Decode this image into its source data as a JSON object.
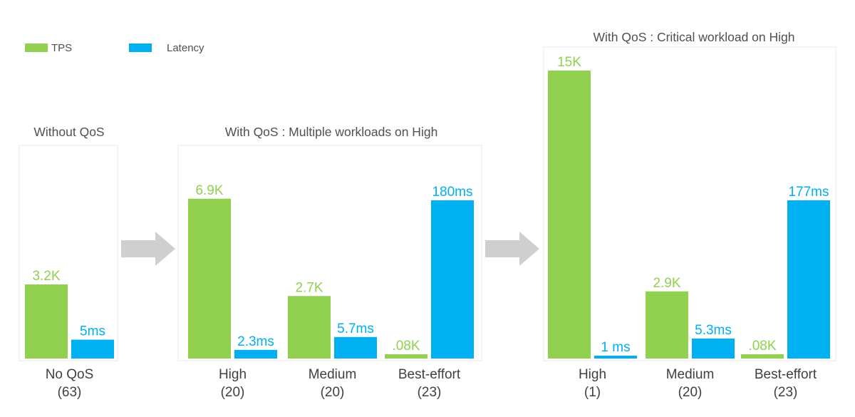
{
  "colors": {
    "tps": "#92d050",
    "latency": "#00b0f0",
    "frame": "#e8e8e8",
    "arrow": "#cfcfcf"
  },
  "legend": [
    {
      "key": "tps",
      "label": "TPS"
    },
    {
      "key": "latency",
      "label": "Latency"
    }
  ],
  "chart_data": [
    {
      "type": "bar",
      "title": "Without QoS",
      "categories": [
        "No QoS\n(63)"
      ],
      "series": [
        {
          "name": "TPS",
          "values": [
            3.2
          ],
          "labels": [
            "3.2K"
          ]
        },
        {
          "name": "Latency",
          "values": [
            5
          ],
          "labels": [
            "5ms"
          ]
        }
      ]
    },
    {
      "type": "bar",
      "title": "With QoS : Multiple workloads on High",
      "categories": [
        "High\n(20)",
        "Medium\n(20)",
        "Best-effort\n(23)"
      ],
      "series": [
        {
          "name": "TPS",
          "values": [
            6.9,
            2.7,
            0.08
          ],
          "labels": [
            "6.9K",
            "2.7K",
            ".08K"
          ]
        },
        {
          "name": "Latency",
          "values": [
            2.3,
            5.7,
            180
          ],
          "labels": [
            "2.3ms",
            "5.7ms",
            "180ms"
          ]
        }
      ]
    },
    {
      "type": "bar",
      "title": "With QoS : Critical workload on High",
      "categories": [
        "High\n(1)",
        "Medium\n(20)",
        "Best-effort\n(23)"
      ],
      "series": [
        {
          "name": "TPS",
          "values": [
            15,
            2.9,
            0.08
          ],
          "labels": [
            "15K",
            "2.9K",
            ".08K"
          ]
        },
        {
          "name": "Latency",
          "values": [
            1,
            5.3,
            177
          ],
          "labels": [
            "1 ms",
            "5.3ms",
            "177ms"
          ]
        }
      ]
    }
  ]
}
